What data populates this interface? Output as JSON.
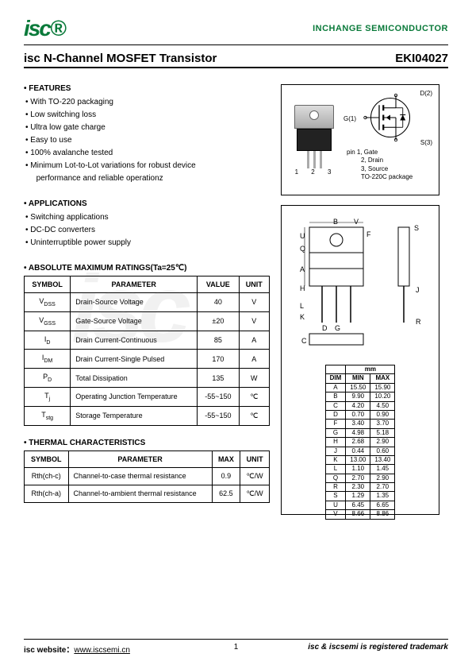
{
  "header": {
    "logo": "isc",
    "company": "INCHANGE SEMICONDUCTOR"
  },
  "title": "isc N-Channel MOSFET Transistor",
  "partno": "EKI04027",
  "features": {
    "title": "FEATURES",
    "items": [
      "With TO-220 packaging",
      "Low switching loss",
      "Ultra low gate charge",
      "Easy to use",
      "100% avalanche tested",
      "Minimum Lot-to-Lot variations for robust device",
      "performance and reliable operationz"
    ]
  },
  "applications": {
    "title": "APPLICATIONS",
    "items": [
      "Switching applications",
      "DC-DC converters",
      "Uninterruptible power supply"
    ]
  },
  "ratings": {
    "title": "ABSOLUTE MAXIMUM RATINGS(Ta=25℃)",
    "headers": [
      "SYMBOL",
      "PARAMETER",
      "VALUE",
      "UNIT"
    ],
    "rows": [
      {
        "sym": "V",
        "sub": "DSS",
        "param": "Drain-Source Voltage",
        "value": "40",
        "unit": "V"
      },
      {
        "sym": "V",
        "sub": "GSS",
        "param": "Gate-Source Voltage",
        "value": "±20",
        "unit": "V"
      },
      {
        "sym": "I",
        "sub": "D",
        "param": "Drain Current-Continuous",
        "value": "85",
        "unit": "A"
      },
      {
        "sym": "I",
        "sub": "DM",
        "param": "Drain Current-Single Pulsed",
        "value": "170",
        "unit": "A"
      },
      {
        "sym": "P",
        "sub": "D",
        "param": "Total Dissipation",
        "value": "135",
        "unit": "W"
      },
      {
        "sym": "T",
        "sub": "j",
        "param": "Operating Junction Temperature",
        "value": "-55~150",
        "unit": "℃"
      },
      {
        "sym": "T",
        "sub": "stg",
        "param": "Storage Temperature",
        "value": "-55~150",
        "unit": "℃"
      }
    ]
  },
  "thermal": {
    "title": "THERMAL CHARACTERISTICS",
    "headers": [
      "SYMBOL",
      "PARAMETER",
      "MAX",
      "UNIT"
    ],
    "rows": [
      {
        "sym": "Rth(ch-c)",
        "param": "Channel-to-case thermal resistance",
        "max": "0.9",
        "unit": "℃/W"
      },
      {
        "sym": "Rth(ch-a)",
        "param": "Channel-to-ambient thermal resistance",
        "max": "62.5",
        "unit": "℃/W"
      }
    ]
  },
  "package": {
    "pins_label": "1 2 3",
    "d_label": "D(2)",
    "g_label": "G(1)",
    "s_label": "S(3)",
    "legend": [
      "pin 1, Gate",
      "2, Drain",
      "3, Source",
      "TO-220C package"
    ]
  },
  "dimensions": {
    "unit_label": "mm",
    "headers": [
      "DIM",
      "MIN",
      "MAX"
    ],
    "rows": [
      [
        "A",
        "15.50",
        "15.90"
      ],
      [
        "B",
        "9.90",
        "10.20"
      ],
      [
        "C",
        "4.20",
        "4.50"
      ],
      [
        "D",
        "0.70",
        "0.90"
      ],
      [
        "F",
        "3.40",
        "3.70"
      ],
      [
        "G",
        "4.98",
        "5.18"
      ],
      [
        "H",
        "2.68",
        "2.90"
      ],
      [
        "J",
        "0.44",
        "0.60"
      ],
      [
        "K",
        "13.00",
        "13.40"
      ],
      [
        "L",
        "1.10",
        "1.45"
      ],
      [
        "Q",
        "2.70",
        "2.90"
      ],
      [
        "R",
        "2.30",
        "2.70"
      ],
      [
        "S",
        "1.29",
        "1.35"
      ],
      [
        "U",
        "6.45",
        "6.65"
      ],
      [
        "V",
        "8.66",
        "8.86"
      ]
    ]
  },
  "footer": {
    "left_a": "isc website：",
    "left_b": "www.iscsemi.cn",
    "page": "1",
    "right": "isc & iscsemi is registered trademark"
  }
}
